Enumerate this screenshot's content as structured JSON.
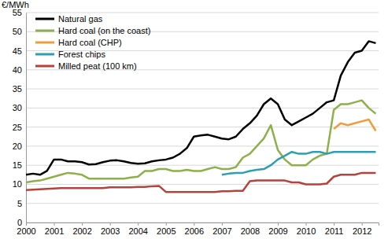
{
  "chart_data": {
    "type": "line",
    "y_label": "€/MWh",
    "x": [
      2000,
      2000.25,
      2000.5,
      2000.75,
      2001,
      2001.25,
      2001.5,
      2001.75,
      2002,
      2002.25,
      2002.5,
      2002.75,
      2003,
      2003.25,
      2003.5,
      2003.75,
      2004,
      2004.25,
      2004.5,
      2004.75,
      2005,
      2005.25,
      2005.5,
      2005.75,
      2006,
      2006.25,
      2006.5,
      2006.75,
      2007,
      2007.25,
      2007.5,
      2007.75,
      2008,
      2008.25,
      2008.5,
      2008.75,
      2009,
      2009.25,
      2009.5,
      2009.75,
      2010,
      2010.25,
      2010.5,
      2010.75,
      2011,
      2011.25,
      2011.5,
      2011.75,
      2012,
      2012.25,
      2012.5
    ],
    "xlim": [
      2000,
      2012.6
    ],
    "xticks": [
      2000,
      2001,
      2002,
      2003,
      2004,
      2005,
      2006,
      2007,
      2008,
      2009,
      2010,
      2011,
      2012
    ],
    "ylim": [
      0,
      55
    ],
    "yticks": [
      0,
      5,
      10,
      15,
      20,
      25,
      30,
      35,
      40,
      45,
      50,
      55
    ],
    "grid": true,
    "legend": "upper left",
    "series": [
      {
        "name": "Natural gas",
        "color": "#000000",
        "values": [
          12.5,
          12.8,
          12.5,
          13.5,
          16.5,
          16.5,
          16,
          16,
          15.8,
          15.2,
          15.3,
          15.8,
          16.2,
          16.3,
          16,
          15.6,
          15.4,
          15.5,
          16,
          16.3,
          16.5,
          17,
          18,
          19.5,
          22.5,
          22.8,
          23,
          22.5,
          22,
          21.8,
          22.5,
          24.5,
          26,
          28,
          31,
          32.5,
          31,
          27,
          25.5,
          26.5,
          27.5,
          28.5,
          30,
          31.5,
          32,
          38.5,
          42,
          44.5,
          45,
          47.5,
          47
        ]
      },
      {
        "name": "Hard coal (on the coast)",
        "color": "#8db04a",
        "values": [
          10.5,
          10.8,
          11,
          11.5,
          12,
          12.5,
          13,
          12.8,
          12.5,
          11.5,
          11.5,
          11.5,
          11.5,
          11.5,
          11.5,
          11.8,
          12,
          13.5,
          13.5,
          14,
          14,
          13.5,
          13.5,
          13.8,
          13.5,
          13.5,
          14,
          14.5,
          14,
          14,
          14.5,
          17,
          18,
          20,
          22,
          25.5,
          19,
          16.5,
          15,
          15,
          15,
          16.5,
          17.5,
          18,
          29.5,
          31,
          31,
          31.5,
          32,
          30,
          28.5
        ]
      },
      {
        "name": "Hard coal (CHP)",
        "color": "#f39a3a",
        "values": [
          null,
          null,
          null,
          null,
          null,
          null,
          null,
          null,
          null,
          null,
          null,
          null,
          null,
          null,
          null,
          null,
          null,
          null,
          null,
          null,
          null,
          null,
          null,
          null,
          null,
          null,
          null,
          null,
          null,
          null,
          null,
          null,
          null,
          null,
          null,
          null,
          null,
          null,
          null,
          null,
          null,
          null,
          null,
          null,
          24.5,
          26,
          25.5,
          26,
          26.5,
          27,
          24
        ]
      },
      {
        "name": "Forest chips",
        "color": "#2e9fb0",
        "values": [
          null,
          null,
          null,
          null,
          null,
          null,
          null,
          null,
          null,
          null,
          null,
          null,
          null,
          null,
          null,
          null,
          null,
          null,
          null,
          null,
          null,
          null,
          null,
          null,
          null,
          null,
          null,
          null,
          12.5,
          12.8,
          13,
          13,
          13.5,
          13.8,
          14,
          15,
          16.5,
          17.5,
          18.5,
          18,
          18,
          18.5,
          18.5,
          18,
          18.5,
          18.5,
          18.5,
          18.5,
          18.5,
          18.5,
          18.5
        ]
      },
      {
        "name": "Milled peat (100 km)",
        "color": "#b5423d",
        "values": [
          8.5,
          8.6,
          8.7,
          8.8,
          8.9,
          9,
          9,
          9,
          9,
          9,
          9,
          9,
          9.2,
          9.2,
          9.2,
          9.2,
          9.3,
          9.3,
          9.5,
          9.6,
          8,
          8,
          8,
          8,
          8,
          8,
          8,
          8,
          8.2,
          8.2,
          8.3,
          8.3,
          10.8,
          11,
          11,
          11,
          11,
          11,
          10.5,
          10.5,
          10,
          10,
          10,
          10.2,
          12,
          12.5,
          12.5,
          12.5,
          13,
          13,
          13
        ]
      }
    ]
  }
}
